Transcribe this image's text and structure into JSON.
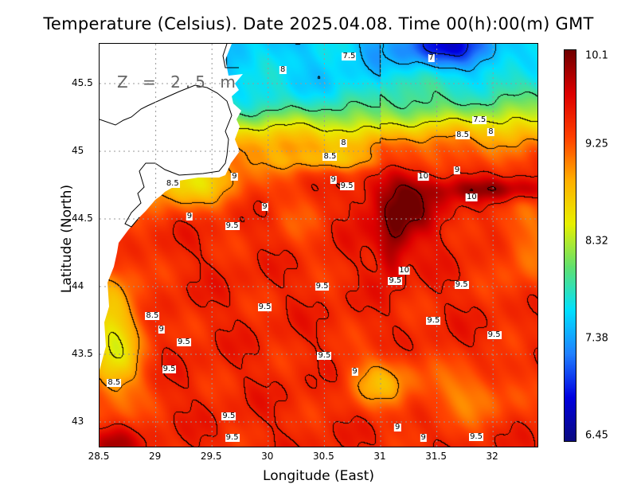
{
  "chart_data": {
    "type": "heatmap",
    "title": "Temperature (Celsius). Date 2025.04.08. Time 00(h):00(m) GMT",
    "annotation": "Z = 2.5 m",
    "xlabel": "Longitude (East)",
    "ylabel": "Latitude (North)",
    "xlim": [
      28.5,
      32.4
    ],
    "ylim": [
      42.8,
      45.79
    ],
    "x_ticks": [
      "28.5",
      "29",
      "29.5",
      "30",
      "30.5",
      "31",
      "31.5",
      "32"
    ],
    "y_ticks": [
      "45.5",
      "45",
      "44.5",
      "44",
      "43.5",
      "43"
    ],
    "grid": true,
    "colorbar": {
      "min": 6.45,
      "max": 10.1,
      "ticks": [
        "10.1",
        "9.25",
        "8.32",
        "7.38",
        "6.45"
      ],
      "colors": [
        "#0a0a80",
        "#0000e0",
        "#2080ff",
        "#00e0ff",
        "#60e070",
        "#e8f000",
        "#ffb000",
        "#ff4000",
        "#dd0000",
        "#700000"
      ]
    },
    "contour_interval": 0.5,
    "contour_labels": [
      {
        "text": "7.5",
        "lon": 30.72,
        "lat": 45.7
      },
      {
        "text": "7",
        "lon": 31.45,
        "lat": 45.69
      },
      {
        "text": "8",
        "lon": 30.13,
        "lat": 45.6
      },
      {
        "text": "7.5",
        "lon": 31.88,
        "lat": 45.23
      },
      {
        "text": "8",
        "lon": 31.98,
        "lat": 45.14
      },
      {
        "text": "8.5",
        "lon": 31.73,
        "lat": 45.12
      },
      {
        "text": "8",
        "lon": 30.67,
        "lat": 45.06
      },
      {
        "text": "8.5",
        "lon": 30.55,
        "lat": 44.96
      },
      {
        "text": "9",
        "lon": 31.68,
        "lat": 44.86
      },
      {
        "text": "10",
        "lon": 31.38,
        "lat": 44.81
      },
      {
        "text": "9",
        "lon": 30.58,
        "lat": 44.79
      },
      {
        "text": "9.5",
        "lon": 30.7,
        "lat": 44.74
      },
      {
        "text": "10",
        "lon": 31.81,
        "lat": 44.66
      },
      {
        "text": "8.5",
        "lon": 29.15,
        "lat": 44.76
      },
      {
        "text": "9",
        "lon": 29.7,
        "lat": 44.81
      },
      {
        "text": "9",
        "lon": 29.3,
        "lat": 44.52
      },
      {
        "text": "9",
        "lon": 29.97,
        "lat": 44.59
      },
      {
        "text": "9.5",
        "lon": 29.68,
        "lat": 44.45
      },
      {
        "text": "10",
        "lon": 31.21,
        "lat": 44.12
      },
      {
        "text": "9.5",
        "lon": 31.13,
        "lat": 44.04
      },
      {
        "text": "9.5",
        "lon": 30.48,
        "lat": 44.0
      },
      {
        "text": "9.5",
        "lon": 31.72,
        "lat": 44.01
      },
      {
        "text": "9.5",
        "lon": 29.97,
        "lat": 43.85
      },
      {
        "text": "8.5",
        "lon": 28.97,
        "lat": 43.78
      },
      {
        "text": "9",
        "lon": 29.05,
        "lat": 43.68
      },
      {
        "text": "9.5",
        "lon": 29.25,
        "lat": 43.59
      },
      {
        "text": "9.5",
        "lon": 31.47,
        "lat": 43.75
      },
      {
        "text": "9.5",
        "lon": 32.01,
        "lat": 43.64
      },
      {
        "text": "9.5",
        "lon": 30.5,
        "lat": 43.49
      },
      {
        "text": "9",
        "lon": 30.77,
        "lat": 43.37
      },
      {
        "text": "9.5",
        "lon": 29.12,
        "lat": 43.39
      },
      {
        "text": "8.5",
        "lon": 28.63,
        "lat": 43.29
      },
      {
        "text": "9.5",
        "lon": 29.65,
        "lat": 43.04
      },
      {
        "text": "9",
        "lon": 31.15,
        "lat": 42.96
      },
      {
        "text": "9",
        "lon": 31.38,
        "lat": 42.88
      },
      {
        "text": "9.5",
        "lon": 31.85,
        "lat": 42.89
      },
      {
        "text": "9.5",
        "lon": 29.68,
        "lat": 42.88
      }
    ]
  }
}
